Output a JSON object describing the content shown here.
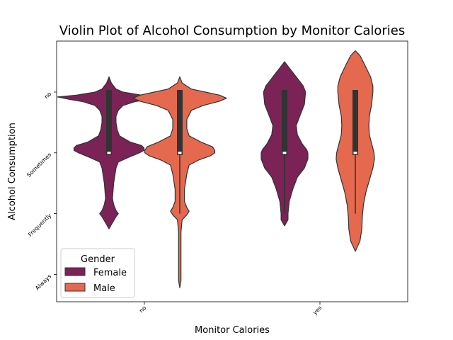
{
  "chart_data": {
    "type": "violin",
    "title": "Violin Plot of Alcohol Consumption by Monitor Calories",
    "xlabel": "Monitor Calories",
    "ylabel": "Alcohol Consumption",
    "x_categories": [
      "no",
      "yes"
    ],
    "y_categories": [
      "no",
      "Sometimes",
      "Frequently",
      "Always"
    ],
    "legend": {
      "title": "Gender",
      "placement": "lower-left",
      "entries": [
        {
          "label": "Female",
          "color": "#7b2257"
        },
        {
          "label": "Male",
          "color": "#e4694e"
        }
      ]
    },
    "series": [
      {
        "name": "Female",
        "color": "#7b2257",
        "violins": [
          {
            "x": "no",
            "profile": [
              [
                -0.25,
                0.0
              ],
              [
                -0.15,
                0.01
              ],
              [
                -0.05,
                0.03
              ],
              [
                0.0,
                0.06
              ],
              [
                0.05,
                0.14
              ],
              [
                0.08,
                0.22
              ],
              [
                0.12,
                0.17
              ],
              [
                0.16,
                0.11
              ],
              [
                0.22,
                0.06
              ],
              [
                0.3,
                0.04
              ],
              [
                0.4,
                0.03
              ],
              [
                0.5,
                0.03
              ],
              [
                0.62,
                0.035
              ],
              [
                0.72,
                0.045
              ],
              [
                0.82,
                0.09
              ],
              [
                0.88,
                0.14
              ],
              [
                0.92,
                0.15
              ],
              [
                0.96,
                0.15
              ],
              [
                1.0,
                0.13
              ],
              [
                1.08,
                0.08
              ],
              [
                1.15,
                0.04
              ],
              [
                1.25,
                0.03
              ],
              [
                1.5,
                0.02
              ],
              [
                1.75,
                0.015
              ],
              [
                1.85,
                0.02
              ],
              [
                1.95,
                0.03
              ],
              [
                2.0,
                0.04
              ],
              [
                2.05,
                0.03
              ],
              [
                2.15,
                0.015
              ],
              [
                2.25,
                0.0
              ]
            ],
            "q1": 0.0,
            "q3": 1.0,
            "whisker_low": 0.0,
            "whisker_high": 1.0,
            "median": 1.0
          },
          {
            "x": "yes",
            "profile": [
              [
                -0.5,
                0.0
              ],
              [
                -0.4,
                0.02
              ],
              [
                -0.25,
                0.05
              ],
              [
                -0.1,
                0.08
              ],
              [
                0.0,
                0.09
              ],
              [
                0.2,
                0.085
              ],
              [
                0.4,
                0.065
              ],
              [
                0.55,
                0.05
              ],
              [
                0.7,
                0.055
              ],
              [
                0.85,
                0.075
              ],
              [
                0.95,
                0.095
              ],
              [
                1.0,
                0.1
              ],
              [
                1.1,
                0.1
              ],
              [
                1.25,
                0.085
              ],
              [
                1.4,
                0.055
              ],
              [
                1.6,
                0.035
              ],
              [
                1.8,
                0.02
              ],
              [
                2.0,
                0.015
              ],
              [
                2.1,
                0.015
              ],
              [
                2.2,
                0.0
              ]
            ],
            "q1": 0.0,
            "q3": 1.0,
            "whisker_low": 0.0,
            "whisker_high": 2.0,
            "median": 1.0
          }
        ]
      },
      {
        "name": "Male",
        "color": "#e4694e",
        "violins": [
          {
            "x": "no",
            "profile": [
              [
                -0.25,
                0.0
              ],
              [
                -0.15,
                0.01
              ],
              [
                -0.05,
                0.05
              ],
              [
                0.0,
                0.11
              ],
              [
                0.05,
                0.17
              ],
              [
                0.1,
                0.2
              ],
              [
                0.15,
                0.17
              ],
              [
                0.22,
                0.1
              ],
              [
                0.3,
                0.05
              ],
              [
                0.45,
                0.03
              ],
              [
                0.6,
                0.03
              ],
              [
                0.72,
                0.04
              ],
              [
                0.82,
                0.09
              ],
              [
                0.9,
                0.14
              ],
              [
                0.96,
                0.15
              ],
              [
                1.0,
                0.15
              ],
              [
                1.05,
                0.13
              ],
              [
                1.12,
                0.08
              ],
              [
                1.2,
                0.04
              ],
              [
                1.35,
                0.03
              ],
              [
                1.6,
                0.02
              ],
              [
                1.8,
                0.02
              ],
              [
                1.9,
                0.03
              ],
              [
                1.96,
                0.04
              ],
              [
                2.02,
                0.03
              ],
              [
                2.1,
                0.01
              ],
              [
                2.3,
                0.005
              ],
              [
                2.6,
                0.005
              ],
              [
                2.9,
                0.005
              ],
              [
                3.1,
                0.005
              ],
              [
                3.22,
                0.0
              ]
            ],
            "q1": 0.0,
            "q3": 1.0,
            "whisker_low": 0.0,
            "whisker_high": 2.0,
            "median": 1.0
          },
          {
            "x": "yes",
            "profile": [
              [
                -0.68,
                0.0
              ],
              [
                -0.6,
                0.02
              ],
              [
                -0.45,
                0.04
              ],
              [
                -0.25,
                0.065
              ],
              [
                -0.1,
                0.075
              ],
              [
                0.0,
                0.075
              ],
              [
                0.2,
                0.07
              ],
              [
                0.4,
                0.06
              ],
              [
                0.55,
                0.058
              ],
              [
                0.7,
                0.06
              ],
              [
                0.85,
                0.07
              ],
              [
                1.0,
                0.08
              ],
              [
                1.1,
                0.082
              ],
              [
                1.25,
                0.075
              ],
              [
                1.45,
                0.06
              ],
              [
                1.65,
                0.045
              ],
              [
                1.85,
                0.035
              ],
              [
                2.05,
                0.03
              ],
              [
                2.25,
                0.028
              ],
              [
                2.45,
                0.02
              ],
              [
                2.62,
                0.0
              ]
            ],
            "q1": 0.0,
            "q3": 1.0,
            "whisker_low": 0.0,
            "whisker_high": 2.0,
            "median": 1.0
          }
        ]
      }
    ]
  }
}
